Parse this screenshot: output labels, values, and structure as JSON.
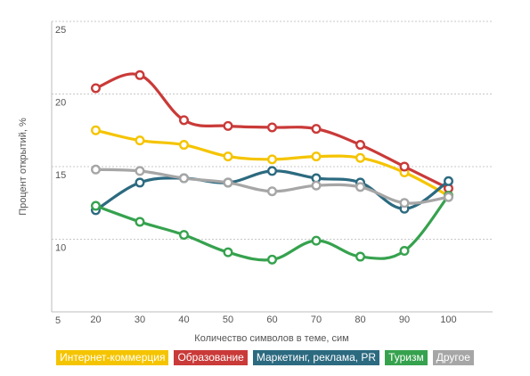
{
  "chart_data": {
    "type": "line",
    "title": "",
    "xlabel": "Количество символов в теме, сим",
    "ylabel": "Процент открытий, %",
    "x": [
      20,
      30,
      40,
      50,
      60,
      70,
      80,
      90,
      100
    ],
    "xlim": [
      10,
      110
    ],
    "ylim": [
      5,
      25
    ],
    "yticks": [
      5,
      10,
      15,
      20,
      25
    ],
    "grid": "horizontal dashed",
    "legend_position": "bottom",
    "series": [
      {
        "name": "Интернет-коммерция",
        "color": "#f5c400",
        "values": [
          17.5,
          16.8,
          16.5,
          15.7,
          15.5,
          15.7,
          15.6,
          14.6,
          13.0
        ]
      },
      {
        "name": "Образование",
        "color": "#c93a38",
        "values": [
          20.4,
          21.3,
          18.2,
          17.8,
          17.7,
          17.6,
          16.5,
          15.0,
          13.5
        ]
      },
      {
        "name": "Маркетинг, реклама, PR",
        "color": "#2c6a80",
        "values": [
          12.0,
          13.9,
          14.2,
          13.9,
          14.7,
          14.2,
          13.9,
          12.1,
          14.0
        ]
      },
      {
        "name": "Туризм",
        "color": "#36a24e",
        "values": [
          12.3,
          11.2,
          10.3,
          9.1,
          8.6,
          9.9,
          8.8,
          9.2,
          13.0
        ]
      },
      {
        "name": "Другое",
        "color": "#a6a6a6",
        "values": [
          14.8,
          14.7,
          14.2,
          13.9,
          13.3,
          13.7,
          13.6,
          12.5,
          12.9
        ]
      }
    ]
  }
}
